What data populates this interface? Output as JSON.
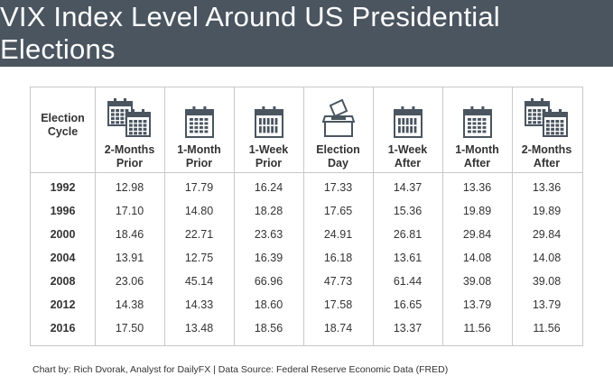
{
  "title": "VIX Index Level Around US Presidential Elections",
  "chart_data": {
    "type": "table",
    "title": "VIX Index Level Around US Presidential Elections",
    "row_header": "Election Cycle",
    "columns": [
      {
        "label": "2-Months Prior",
        "line1": "2-Months",
        "line2": "Prior",
        "icon": "double-calendar-icon"
      },
      {
        "label": "1-Month Prior",
        "line1": "1-Month",
        "line2": "Prior",
        "icon": "calendar-month-icon"
      },
      {
        "label": "1-Week Prior",
        "line1": "1-Week",
        "line2": "Prior",
        "icon": "calendar-week-icon"
      },
      {
        "label": "Election Day",
        "line1": "Election",
        "line2": "Day",
        "icon": "ballot-box-icon"
      },
      {
        "label": "1-Week After",
        "line1": "1-Week",
        "line2": "After",
        "icon": "calendar-week-icon"
      },
      {
        "label": "1-Month After",
        "line1": "1-Month",
        "line2": "After",
        "icon": "calendar-month-icon"
      },
      {
        "label": "2-Months After",
        "line1": "2-Months",
        "line2": "After",
        "icon": "double-calendar-icon"
      }
    ],
    "rows": [
      {
        "year": "1992",
        "values": [
          "12.98",
          "17.79",
          "16.24",
          "17.33",
          "14.37",
          "13.36",
          "13.36"
        ]
      },
      {
        "year": "1996",
        "values": [
          "17.10",
          "14.80",
          "18.28",
          "17.65",
          "15.36",
          "19.89",
          "19.89"
        ]
      },
      {
        "year": "2000",
        "values": [
          "18.46",
          "22.71",
          "23.63",
          "24.91",
          "26.81",
          "29.84",
          "29.84"
        ]
      },
      {
        "year": "2004",
        "values": [
          "13.91",
          "12.75",
          "16.39",
          "16.18",
          "13.61",
          "14.08",
          "14.08"
        ]
      },
      {
        "year": "2008",
        "values": [
          "23.06",
          "45.14",
          "66.96",
          "47.73",
          "61.44",
          "39.08",
          "39.08"
        ]
      },
      {
        "year": "2012",
        "values": [
          "14.38",
          "14.33",
          "18.60",
          "17.58",
          "16.65",
          "13.79",
          "13.79"
        ]
      },
      {
        "year": "2016",
        "values": [
          "17.50",
          "13.48",
          "18.56",
          "18.74",
          "13.37",
          "11.56",
          "11.56"
        ]
      }
    ]
  },
  "footer": "Chart by: Rich Dvorak, Analyst for DailyFX  |  Data Source: Federal Reserve Economic Data (FRED)",
  "colors": {
    "banner": "#4a5560",
    "text": "#333333",
    "icon": "#4a5560",
    "border": "#c8c8c8"
  }
}
